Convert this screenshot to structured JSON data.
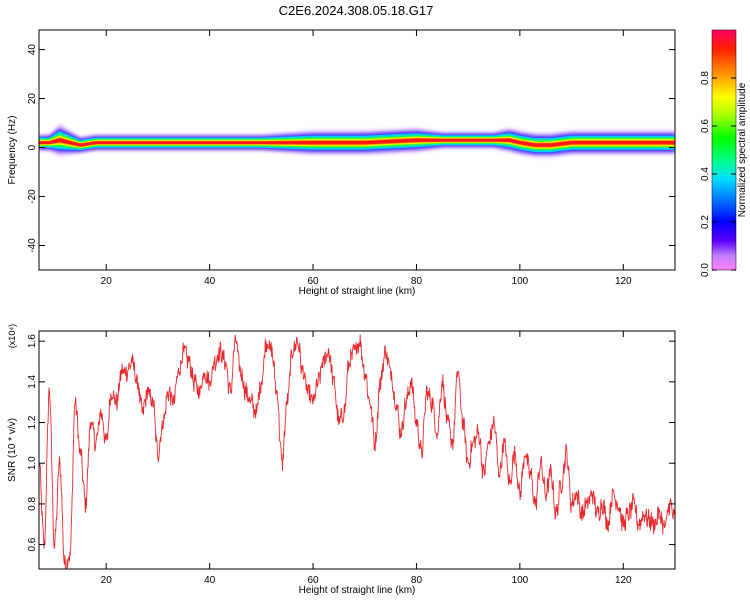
{
  "title": "C2E6.2024.308.05.18.G17",
  "chart_data": [
    {
      "type": "heatmap",
      "xlabel": "Height of straight line (km)",
      "ylabel": "Frequency (Hz)",
      "xlim": [
        7,
        130
      ],
      "ylim": [
        -50,
        48
      ],
      "xticks": [
        20,
        40,
        60,
        80,
        100,
        120
      ],
      "yticks": [
        -40,
        -20,
        0,
        20,
        40
      ],
      "ridge": {
        "x": [
          7,
          9,
          11,
          13,
          15,
          18,
          20,
          30,
          40,
          50,
          60,
          70,
          80,
          85,
          90,
          95,
          98,
          100,
          103,
          106,
          110,
          115,
          120,
          125,
          130
        ],
        "frequency_hz": [
          2,
          2,
          3,
          2,
          1,
          2,
          2,
          2,
          2,
          2,
          2,
          2,
          3,
          3,
          3,
          3,
          3,
          2,
          1,
          1,
          2,
          2,
          2,
          2,
          2
        ],
        "spread_hz": [
          2,
          2,
          4,
          3,
          2,
          2,
          2,
          2,
          2,
          2,
          3,
          3,
          3,
          2,
          2,
          2,
          3,
          3,
          3,
          3,
          3,
          3,
          3,
          3,
          3
        ]
      },
      "colorbar": {
        "label": "Normalized spectral amplitude",
        "range": [
          0,
          1
        ],
        "ticks": [
          "0.0",
          "0.2",
          "0.4",
          "0.6",
          "0.8"
        ]
      }
    },
    {
      "type": "line",
      "xlabel": "Height of straight line (km)",
      "ylabel": "SNR (10 * v/v)",
      "y_multiplier": "(x10⁴)",
      "xlim": [
        7,
        130
      ],
      "ylim": [
        0.48,
        1.65
      ],
      "xticks": [
        20,
        40,
        60,
        80,
        100,
        120
      ],
      "yticks": [
        "0.6",
        "0.8",
        "1.0",
        "1.2",
        "1.4",
        "1.6"
      ],
      "color": "#e8282c",
      "series": [
        {
          "x": [
            7,
            8,
            9,
            10,
            11,
            12,
            13,
            14,
            15,
            16,
            17,
            18,
            19,
            20,
            21,
            22,
            23,
            24,
            25,
            26,
            27,
            28,
            29,
            30,
            31,
            32,
            33,
            34,
            35,
            36,
            37,
            38,
            39,
            40,
            41,
            42,
            43,
            44,
            45,
            46,
            47,
            48,
            49,
            50,
            51,
            52,
            53,
            54,
            55,
            56,
            57,
            58,
            59,
            60,
            61,
            62,
            63,
            64,
            65,
            66,
            67,
            68,
            69,
            70,
            71,
            72,
            73,
            74,
            75,
            76,
            77,
            78,
            79,
            80,
            81,
            82,
            83,
            84,
            85,
            86,
            87,
            88,
            89,
            90,
            91,
            92,
            93,
            94,
            95,
            96,
            97,
            98,
            99,
            100,
            101,
            102,
            103,
            104,
            105,
            106,
            107,
            108,
            109,
            110,
            111,
            112,
            113,
            114,
            115,
            116,
            117,
            118,
            119,
            120,
            121,
            122,
            123,
            124,
            125,
            126,
            127,
            128,
            129,
            130
          ],
          "y": [
            1.0,
            0.6,
            1.35,
            0.6,
            1.0,
            0.5,
            0.55,
            1.3,
            1.05,
            0.8,
            1.2,
            1.1,
            1.25,
            1.1,
            1.35,
            1.3,
            1.45,
            1.45,
            1.5,
            1.4,
            1.25,
            1.35,
            1.3,
            1.05,
            1.2,
            1.35,
            1.3,
            1.45,
            1.55,
            1.5,
            1.4,
            1.35,
            1.45,
            1.4,
            1.5,
            1.55,
            1.5,
            1.35,
            1.6,
            1.45,
            1.35,
            1.3,
            1.25,
            1.4,
            1.6,
            1.55,
            1.35,
            1.0,
            1.3,
            1.55,
            1.6,
            1.45,
            1.35,
            1.3,
            1.4,
            1.5,
            1.55,
            1.4,
            1.2,
            1.25,
            1.5,
            1.55,
            1.6,
            1.45,
            1.3,
            1.1,
            1.4,
            1.55,
            1.45,
            1.3,
            1.15,
            1.3,
            1.4,
            1.2,
            1.05,
            1.35,
            1.3,
            1.15,
            1.4,
            1.2,
            1.1,
            1.45,
            1.2,
            1.0,
            1.1,
            1.15,
            0.95,
            1.1,
            1.2,
            0.95,
            1.1,
            0.9,
            1.05,
            0.85,
            1.05,
            0.95,
            0.8,
            1.0,
            0.85,
            0.95,
            0.75,
            0.9,
            1.05,
            0.8,
            0.85,
            0.75,
            0.8,
            0.85,
            0.75,
            0.8,
            0.7,
            0.85,
            0.8,
            0.7,
            0.75,
            0.8,
            0.7,
            0.75,
            0.72,
            0.7,
            0.75,
            0.68,
            0.8,
            0.72
          ]
        }
      ]
    }
  ]
}
